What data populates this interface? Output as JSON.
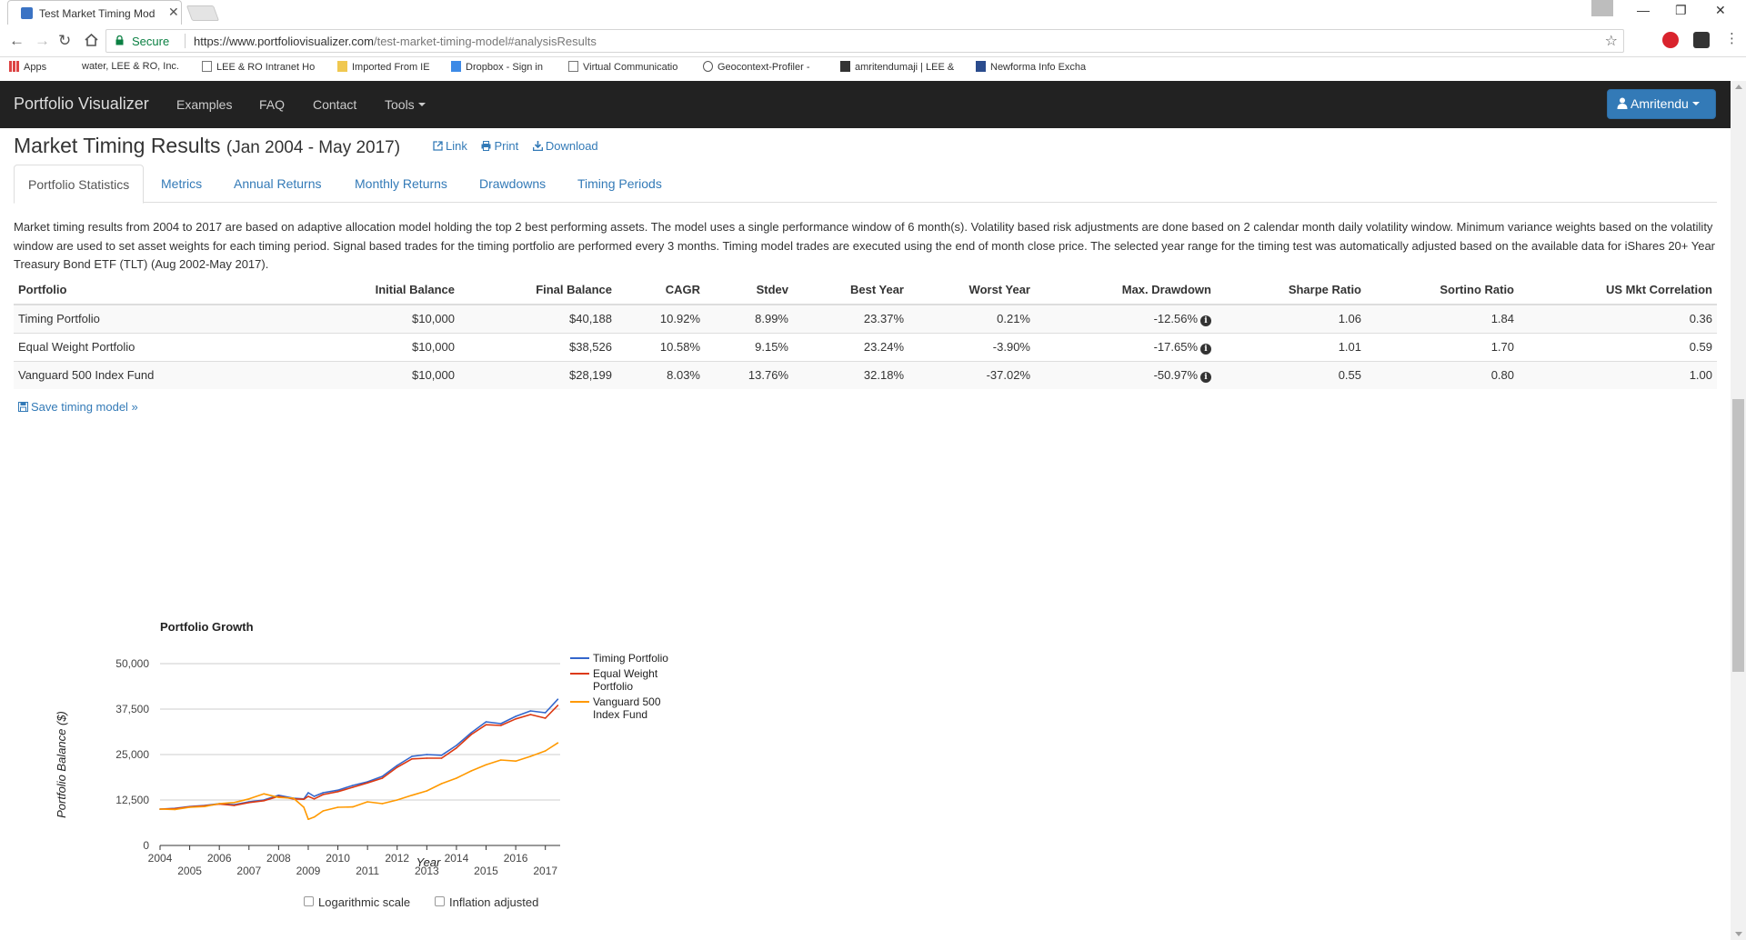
{
  "browser": {
    "tab_title": "Test Market Timing Mod",
    "secure_label": "Secure",
    "url_host": "https://www.portfoliovisualizer.com",
    "url_path": "/test-market-timing-model#analysisResults",
    "bookmarks": [
      "Apps",
      "water, LEE & RO, Inc.",
      "LEE & RO Intranet Ho",
      "Imported From IE",
      "Dropbox - Sign in",
      "Virtual Communicatio",
      "Geocontext-Profiler -",
      "amritendumaji | LEE &",
      "Newforma Info Excha"
    ]
  },
  "navbar": {
    "brand": "Portfolio Visualizer",
    "links": [
      "Examples",
      "FAQ",
      "Contact",
      "Tools"
    ],
    "user": "Amritendu"
  },
  "page": {
    "title": "Market Timing Results",
    "range": "(Jan 2004 - May 2017)",
    "actions": [
      "Link",
      "Print",
      "Download"
    ]
  },
  "tabs": [
    "Portfolio Statistics",
    "Metrics",
    "Annual Returns",
    "Monthly Returns",
    "Drawdowns",
    "Timing Periods"
  ],
  "description": "Market timing results from 2004 to 2017 are based on adaptive allocation model holding the top 2 best performing assets. The model uses a single performance window of 6 month(s). Volatility based risk adjustments are done based on 2 calendar month daily volatility window. Minimum variance weights based on the volatility window are used to set asset weights for each timing period. Signal based trades for the timing portfolio are performed every 3 months. Timing model trades are executed using the end of month close price. The selected year range for the timing test was automatically adjusted based on the available data for iShares 20+ Year Treasury Bond ETF (TLT) (Aug 2002-May 2017).",
  "stats_table": {
    "headers": [
      "Portfolio",
      "Initial Balance",
      "Final Balance",
      "CAGR",
      "Stdev",
      "Best Year",
      "Worst Year",
      "Max. Drawdown",
      "Sharpe Ratio",
      "Sortino Ratio",
      "US Mkt Correlation"
    ],
    "rows": [
      [
        "Timing Portfolio",
        "$10,000",
        "$40,188",
        "10.92%",
        "8.99%",
        "23.37%",
        "0.21%",
        "-12.56%",
        "1.06",
        "1.84",
        "0.36"
      ],
      [
        "Equal Weight Portfolio",
        "$10,000",
        "$38,526",
        "10.58%",
        "9.15%",
        "23.24%",
        "-3.90%",
        "-17.65%",
        "1.01",
        "1.70",
        "0.59"
      ],
      [
        "Vanguard 500 Index Fund",
        "$10,000",
        "$28,199",
        "8.03%",
        "13.76%",
        "32.18%",
        "-37.02%",
        "-50.97%",
        "0.55",
        "0.80",
        "1.00"
      ]
    ]
  },
  "save_link": "Save timing model »",
  "chart_options": [
    "Logarithmic scale",
    "Inflation adjusted"
  ],
  "chart_data": {
    "type": "line",
    "title": "Portfolio Growth",
    "xlabel": "Year",
    "ylabel": "Portfolio Balance ($)",
    "ylim": [
      0,
      50000
    ],
    "yticks": [
      "0",
      "12,500",
      "25,000",
      "37,500",
      "50,000"
    ],
    "xticks": [
      "2004",
      "2005",
      "2006",
      "2007",
      "2008",
      "2009",
      "2010",
      "2011",
      "2012",
      "2013",
      "2014",
      "2015",
      "2016",
      "2017"
    ],
    "grid": true,
    "legend_position": "right",
    "x": [
      2004.0,
      2004.5,
      2005.0,
      2005.5,
      2006.0,
      2006.5,
      2007.0,
      2007.5,
      2008.0,
      2008.5,
      2008.85,
      2009.0,
      2009.2,
      2009.5,
      2010.0,
      2010.5,
      2011.0,
      2011.5,
      2012.0,
      2012.5,
      2013.0,
      2013.5,
      2014.0,
      2014.5,
      2015.0,
      2015.5,
      2016.0,
      2016.5,
      2017.0,
      2017.42
    ],
    "series": [
      {
        "name": "Timing Portfolio",
        "color": "#3366cc",
        "values": [
          10000,
          10200,
          10700,
          11000,
          11500,
          11200,
          12000,
          12500,
          13800,
          13000,
          12800,
          14500,
          13500,
          14500,
          15200,
          16500,
          17500,
          19000,
          22000,
          24500,
          25000,
          24800,
          27500,
          31000,
          34000,
          33500,
          35500,
          37000,
          36500,
          40188
        ]
      },
      {
        "name": "Equal Weight Portfolio",
        "color": "#dc3912",
        "values": [
          10000,
          10100,
          10600,
          10900,
          11400,
          11000,
          11800,
          12300,
          13500,
          12800,
          12700,
          13500,
          12800,
          14000,
          14800,
          16000,
          17200,
          18500,
          21500,
          23800,
          24000,
          24000,
          26800,
          30500,
          33200,
          33000,
          34800,
          36000,
          35000,
          38526
        ]
      },
      {
        "name": "Vanguard 500 Index Fund",
        "color": "#ff9900",
        "values": [
          10000,
          9900,
          10500,
          10700,
          11500,
          11800,
          12800,
          14200,
          13200,
          13000,
          10500,
          7200,
          7800,
          9500,
          10500,
          10600,
          12000,
          11500,
          12500,
          13800,
          15000,
          17000,
          18500,
          20500,
          22200,
          23500,
          23200,
          24500,
          26000,
          28199
        ]
      }
    ]
  }
}
